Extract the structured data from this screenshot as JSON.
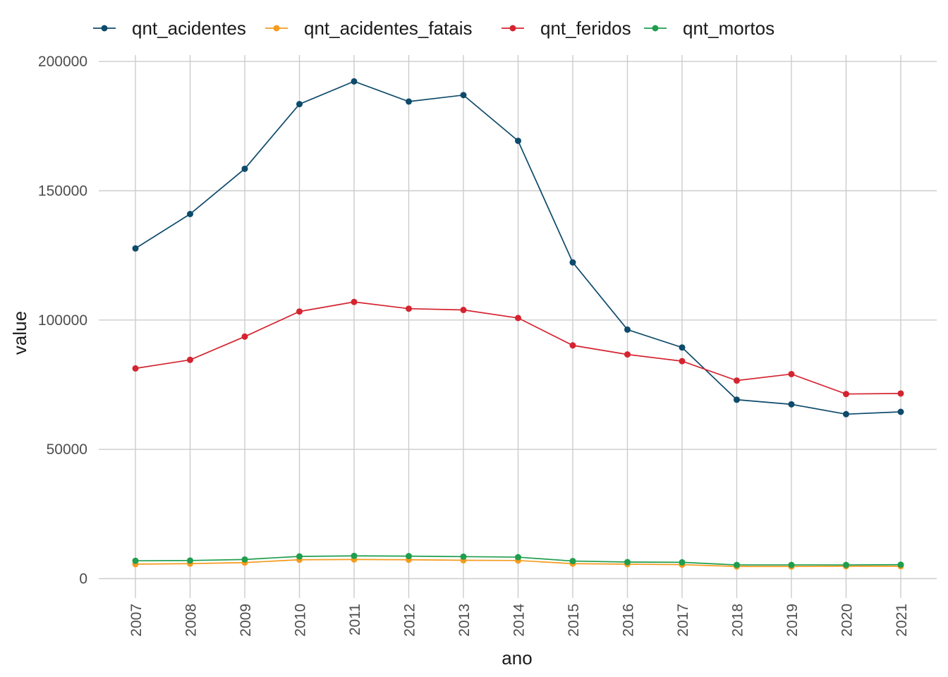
{
  "chart_data": {
    "type": "line",
    "title": "",
    "xlabel": "ano",
    "ylabel": "value",
    "x": [
      "2007",
      "2008",
      "2009",
      "2010",
      "2011",
      "2012",
      "2013",
      "2014",
      "2015",
      "2016",
      "2017",
      "2018",
      "2019",
      "2020",
      "2021"
    ],
    "y_ticks": [
      0,
      50000,
      100000,
      150000,
      200000
    ],
    "y_tick_labels": [
      "0",
      "50000",
      "100000",
      "150000",
      "200000"
    ],
    "ylim": [
      -7500,
      202500
    ],
    "grid": true,
    "legend_position": "top",
    "series": [
      {
        "name": "qnt_acidentes",
        "color": "#0d4a6b",
        "values": [
          127700,
          141000,
          158500,
          183500,
          192300,
          184500,
          187000,
          169300,
          122300,
          96300,
          89400,
          69200,
          67400,
          63600,
          64500
        ]
      },
      {
        "name": "qnt_acidentes_fatais",
        "color": "#f59b1e",
        "values": [
          5600,
          5800,
          6200,
          7300,
          7400,
          7300,
          7100,
          7000,
          5800,
          5600,
          5400,
          4700,
          4700,
          4800,
          4800
        ]
      },
      {
        "name": "qnt_feridos",
        "color": "#d42430",
        "values": [
          81300,
          84600,
          93600,
          103300,
          107000,
          104400,
          103900,
          100800,
          90200,
          86700,
          84100,
          76600,
          79100,
          71400,
          71600
        ]
      },
      {
        "name": "qnt_mortos",
        "color": "#1f9e4e",
        "values": [
          6900,
          7000,
          7400,
          8600,
          8800,
          8700,
          8500,
          8300,
          6800,
          6400,
          6300,
          5300,
          5300,
          5300,
          5400
        ]
      }
    ]
  }
}
